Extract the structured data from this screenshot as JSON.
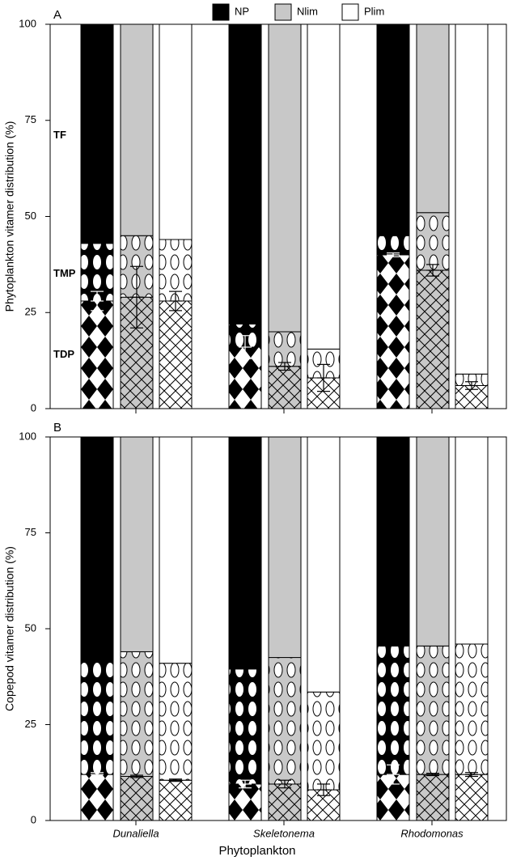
{
  "chart_data": {
    "type": "bar",
    "stacked": true,
    "xlabel": "Phytoplankton",
    "categories": [
      "Dunaliella",
      "Skeletonema",
      "Rhodomonas"
    ],
    "conditions": [
      {
        "name": "NP",
        "color": "#000000"
      },
      {
        "name": "Nlim",
        "color": "#c8c8c8"
      },
      {
        "name": "Plim",
        "color": "#ffffff"
      }
    ],
    "panels": [
      {
        "label": "A",
        "ylabel": "Phytoplankton vitamer distribution (%)",
        "ylim": [
          0,
          100
        ],
        "yticks": [
          0,
          25,
          50,
          75,
          100
        ],
        "series": [
          {
            "name": "TDP",
            "values": [
              28,
              29,
              28,
              16,
              11,
              8,
              40,
              36,
              6
            ],
            "errors": [
              2.5,
              8,
              2.5,
              3,
              1,
              3.5,
              0.5,
              1.5,
              1
            ]
          },
          {
            "name": "TMP",
            "values": [
              15,
              16,
              16,
              6,
              9,
              7.5,
              5,
              15,
              3
            ]
          },
          {
            "name": "TF",
            "values": [
              57,
              55,
              56,
              78,
              80,
              84.5,
              55,
              49,
              91
            ]
          }
        ]
      },
      {
        "label": "B",
        "ylabel": "Copepod vitamer distribution (%)",
        "ylim": [
          0,
          100
        ],
        "yticks": [
          0,
          25,
          50,
          75,
          100
        ],
        "series": [
          {
            "values": [
              12,
              11.5,
              10.5,
              9.5,
              9.5,
              8,
              12,
              12,
              12
            ],
            "errors": [
              0.5,
              0.3,
              0.3,
              1,
              1,
              1.5,
              2.5,
              0.3,
              0.5
            ]
          },
          {
            "values": [
              30.5,
              32.5,
              30.5,
              30,
              33,
              25.5,
              33.5,
              33.5,
              34
            ]
          },
          {
            "values": [
              57.5,
              56,
              59,
              60.5,
              57.5,
              66.5,
              54.5,
              54.5,
              54
            ]
          }
        ]
      }
    ]
  }
}
